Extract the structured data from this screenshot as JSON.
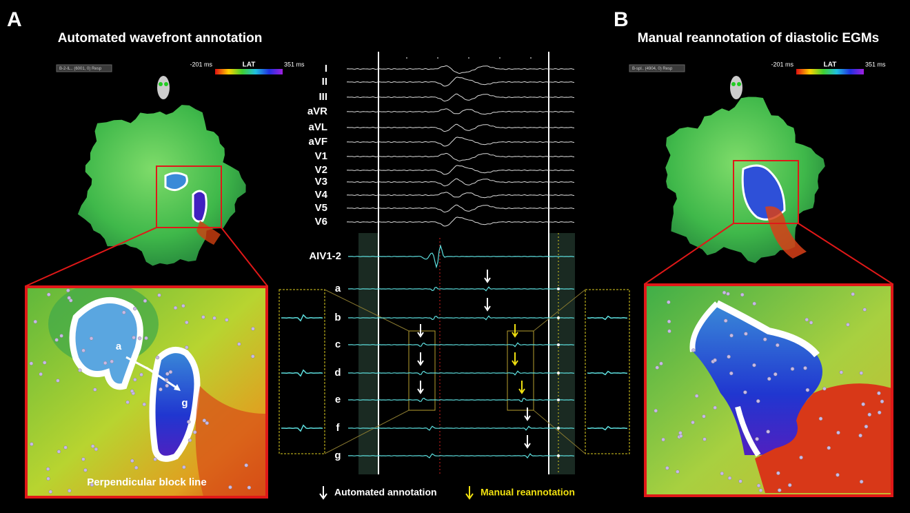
{
  "panel_a": {
    "letter": "A",
    "title": "Automated wavefront annotation",
    "map_selector": "B-2-IL.. (6001, 0) Resp",
    "colorbar": {
      "min_label": "-201 ms",
      "name": "LAT",
      "max_label": "351 ms"
    },
    "zoom_labels": [
      "a",
      "g"
    ],
    "zoom_caption": "Perpendicular block line"
  },
  "panel_b": {
    "letter": "B",
    "title": "Manual reannotation of diastolic EGMs",
    "map_selector": "B-spl.. (4904, 0) Resp",
    "colorbar": {
      "min_label": "-201 ms",
      "name": "LAT",
      "max_label": "351 ms"
    }
  },
  "ecg": {
    "surface_leads": [
      "I",
      "II",
      "III",
      "aVR",
      "aVL",
      "aVF",
      "V1",
      "V2",
      "V3",
      "V4",
      "V5",
      "V6"
    ],
    "intracardiac_lead": "AIV1-2",
    "bipoles": [
      "a",
      "b",
      "c",
      "d",
      "e",
      "f",
      "g"
    ]
  },
  "legend": {
    "automated": "Automated annotation",
    "manual": "Manual reannotation"
  }
}
